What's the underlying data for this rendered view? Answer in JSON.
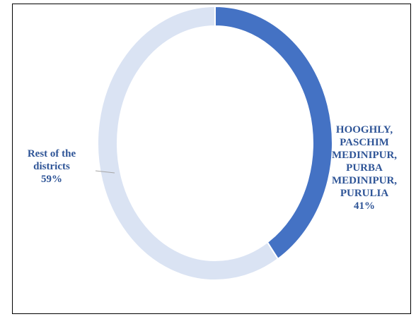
{
  "chart_data": {
    "type": "donut",
    "categories": [
      "HOOGHLY, PASCHIM MEDINIPUR, PURBA MEDINIPUR, PURULIA",
      "Rest of the districts"
    ],
    "values": [
      41,
      59
    ],
    "value_labels": [
      "41%",
      "59%"
    ],
    "colors": [
      "#4472c4",
      "#dae3f3"
    ]
  }
}
